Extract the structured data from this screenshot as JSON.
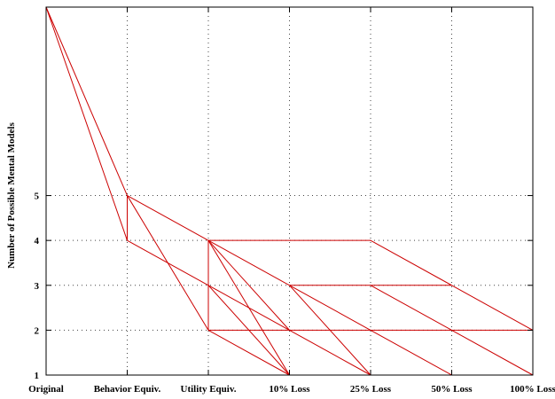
{
  "chart_data": {
    "type": "line",
    "title": "",
    "xlabel": "",
    "ylabel": "Number of Possible Mental Models",
    "categories": [
      "Original",
      "Behavior Equiv.",
      "Utility Equiv.",
      "10% Loss",
      "25% Loss",
      "50% Loss",
      "100% Loss"
    ],
    "y_ticks": [
      1,
      2,
      3,
      4,
      5
    ],
    "ylim": [
      1,
      9.2
    ],
    "grid": true,
    "line_color": "#cc0000",
    "segments": [
      {
        "from": [
          "Original",
          9.2
        ],
        "to": [
          "Behavior Equiv.",
          5
        ]
      },
      {
        "from": [
          "Original",
          9.2
        ],
        "to": [
          "Behavior Equiv.",
          4
        ]
      },
      {
        "from": [
          "Behavior Equiv.",
          5
        ],
        "to": [
          "Behavior Equiv.",
          4
        ]
      },
      {
        "from": [
          "Behavior Equiv.",
          5
        ],
        "to": [
          "Utility Equiv.",
          4
        ]
      },
      {
        "from": [
          "Behavior Equiv.",
          5
        ],
        "to": [
          "Utility Equiv.",
          2
        ]
      },
      {
        "from": [
          "Behavior Equiv.",
          4
        ],
        "to": [
          "Utility Equiv.",
          3
        ]
      },
      {
        "from": [
          "Utility Equiv.",
          4
        ],
        "to": [
          "Utility Equiv.",
          2
        ]
      },
      {
        "from": [
          "Utility Equiv.",
          4
        ],
        "to": [
          "25% Loss",
          4
        ]
      },
      {
        "from": [
          "Utility Equiv.",
          4
        ],
        "to": [
          "10% Loss",
          3
        ]
      },
      {
        "from": [
          "Utility Equiv.",
          4
        ],
        "to": [
          "10% Loss",
          2
        ]
      },
      {
        "from": [
          "Utility Equiv.",
          4
        ],
        "to": [
          "10% Loss",
          1
        ]
      },
      {
        "from": [
          "Utility Equiv.",
          3
        ],
        "to": [
          "10% Loss",
          2
        ]
      },
      {
        "from": [
          "Utility Equiv.",
          3
        ],
        "to": [
          "10% Loss",
          1
        ]
      },
      {
        "from": [
          "Utility Equiv.",
          2
        ],
        "to": [
          "10% Loss",
          1
        ]
      },
      {
        "from": [
          "Utility Equiv.",
          2
        ],
        "to": [
          "100% Loss",
          2
        ]
      },
      {
        "from": [
          "10% Loss",
          3
        ],
        "to": [
          "50% Loss",
          3
        ]
      },
      {
        "from": [
          "10% Loss",
          3
        ],
        "to": [
          "25% Loss",
          2
        ]
      },
      {
        "from": [
          "10% Loss",
          3
        ],
        "to": [
          "25% Loss",
          1
        ]
      },
      {
        "from": [
          "10% Loss",
          2
        ],
        "to": [
          "25% Loss",
          1
        ]
      },
      {
        "from": [
          "25% Loss",
          4
        ],
        "to": [
          "50% Loss",
          3
        ]
      },
      {
        "from": [
          "25% Loss",
          3
        ],
        "to": [
          "50% Loss",
          2
        ]
      },
      {
        "from": [
          "25% Loss",
          2
        ],
        "to": [
          "50% Loss",
          1
        ]
      },
      {
        "from": [
          "50% Loss",
          3
        ],
        "to": [
          "100% Loss",
          2
        ]
      },
      {
        "from": [
          "50% Loss",
          2
        ],
        "to": [
          "100% Loss",
          1
        ]
      },
      {
        "from": [
          "100% Loss",
          2
        ],
        "to": [
          "100% Loss",
          1
        ]
      }
    ]
  }
}
